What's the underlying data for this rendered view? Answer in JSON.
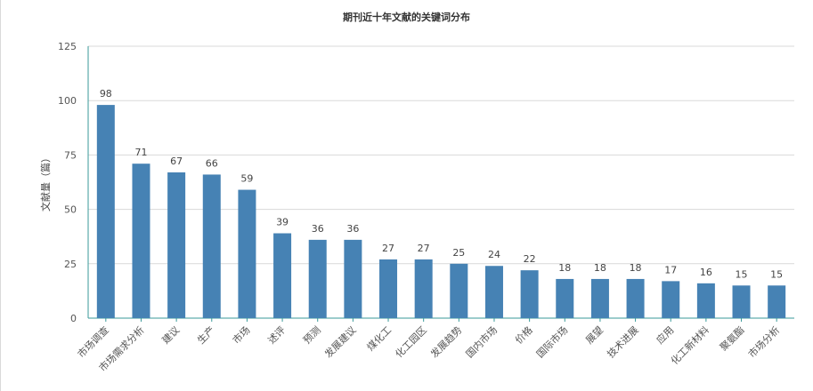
{
  "chart_data": {
    "type": "bar",
    "title": "期刊近十年文献的关键词分布",
    "xlabel": "",
    "ylabel": "文献量（篇）",
    "ylim": [
      0,
      125
    ],
    "yticks": [
      0,
      25,
      50,
      75,
      100,
      125
    ],
    "grid": true,
    "legend": "none",
    "bar_color": "#4682b4",
    "categories": [
      "市场调查",
      "市场需求分析",
      "建议",
      "生产",
      "市场",
      "述评",
      "预测",
      "发展建议",
      "煤化工",
      "化工园区",
      "发展趋势",
      "国内市场",
      "价格",
      "国际市场",
      "展望",
      "技术进展",
      "应用",
      "化工新材料",
      "聚氨酯",
      "市场分析"
    ],
    "values": [
      98,
      71,
      67,
      66,
      59,
      39,
      36,
      36,
      27,
      27,
      25,
      24,
      22,
      18,
      18,
      18,
      17,
      16,
      15,
      15
    ]
  }
}
